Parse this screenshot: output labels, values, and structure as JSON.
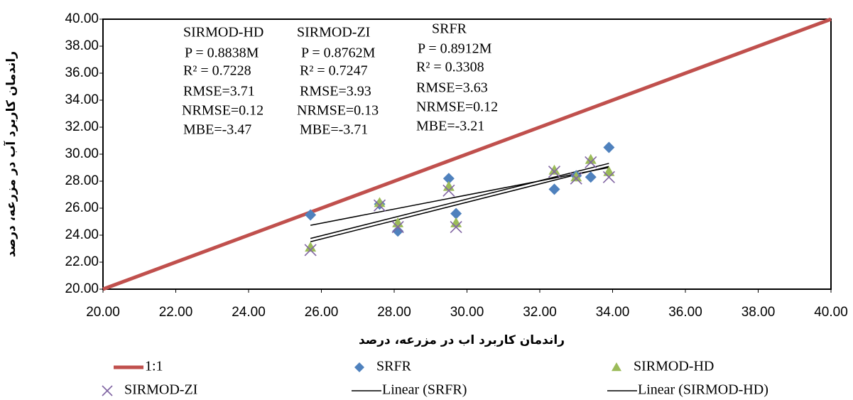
{
  "chart_data": {
    "type": "scatter",
    "x_label": "راندمان کاربرد اب در مزرعه، درصد",
    "y_label": "راندمان کاربرد آب در مزرعه، درصد",
    "xlim": [
      20,
      40
    ],
    "ylim": [
      20,
      40
    ],
    "xticks": [
      {
        "value": 20,
        "label": "20.00"
      },
      {
        "value": 22,
        "label": "22.00"
      },
      {
        "value": 24,
        "label": "24.00"
      },
      {
        "value": 26,
        "label": "26.00"
      },
      {
        "value": 28,
        "label": "28.00"
      },
      {
        "value": 30,
        "label": "30.00"
      },
      {
        "value": 32,
        "label": "32.00"
      },
      {
        "value": 34,
        "label": "34.00"
      },
      {
        "value": 36,
        "label": "36.00"
      },
      {
        "value": 38,
        "label": "38.00"
      },
      {
        "value": 40,
        "label": "40.00"
      }
    ],
    "yticks": [
      {
        "value": 20,
        "label": "20.00"
      },
      {
        "value": 22,
        "label": "22.00"
      },
      {
        "value": 24,
        "label": "24.00"
      },
      {
        "value": 26,
        "label": "26.00"
      },
      {
        "value": 28,
        "label": "28.00"
      },
      {
        "value": 30,
        "label": "30.00"
      },
      {
        "value": 32,
        "label": "32.00"
      },
      {
        "value": 34,
        "label": "34.00"
      },
      {
        "value": 36,
        "label": "36.00"
      },
      {
        "value": 38,
        "label": "38.00"
      },
      {
        "value": 40,
        "label": "40.00"
      }
    ],
    "series": [
      {
        "name": "1:1",
        "type": "line",
        "color": "#c0504d",
        "x": [
          20,
          40
        ],
        "values": [
          20,
          40
        ]
      },
      {
        "name": "SRFR",
        "marker": "diamond",
        "color": "#4f81bd",
        "trendline": "Linear (SRFR)",
        "x": [
          25.7,
          27.6,
          28.1,
          29.5,
          29.7,
          32.4,
          33.0,
          33.4,
          33.9
        ],
        "values": [
          25.5,
          26.3,
          24.3,
          28.2,
          25.6,
          27.4,
          28.4,
          28.3,
          30.5
        ]
      },
      {
        "name": "SIRMOD-HD",
        "marker": "triangle",
        "color": "#9bbb59",
        "trendline": "Linear (SIRMOD-HD)",
        "x": [
          25.7,
          27.6,
          28.1,
          29.5,
          29.7,
          32.4,
          33.0,
          33.4,
          33.9
        ],
        "values": [
          23.1,
          26.4,
          24.9,
          27.6,
          24.9,
          28.8,
          28.3,
          29.6,
          28.7
        ]
      },
      {
        "name": "SIRMOD-ZI",
        "marker": "x",
        "color": "#8064a2",
        "trendline": true,
        "x": [
          25.7,
          27.6,
          28.1,
          29.5,
          29.7,
          32.4,
          33.0,
          33.4,
          33.9
        ],
        "values": [
          22.9,
          26.2,
          24.6,
          27.3,
          24.6,
          28.7,
          28.2,
          29.4,
          28.3
        ]
      }
    ],
    "annotations": [
      [
        "SIRMOD-HD",
        "P = 0.8838M",
        "R² = 0.7228",
        "RMSE=3.71",
        "NRMSE=0.12",
        "MBE=-3.47"
      ],
      [
        "SIRMOD-ZI",
        "P = 0.8762M",
        "R² = 0.7247",
        "RMSE=3.93",
        "NRMSE=0.13",
        "MBE=-3.71"
      ],
      [
        "SRFR",
        "P = 0.8912M",
        "R² = 0.3308",
        "RMSE=3.63",
        "NRMSE=0.12",
        "MBE=-3.21"
      ]
    ]
  }
}
